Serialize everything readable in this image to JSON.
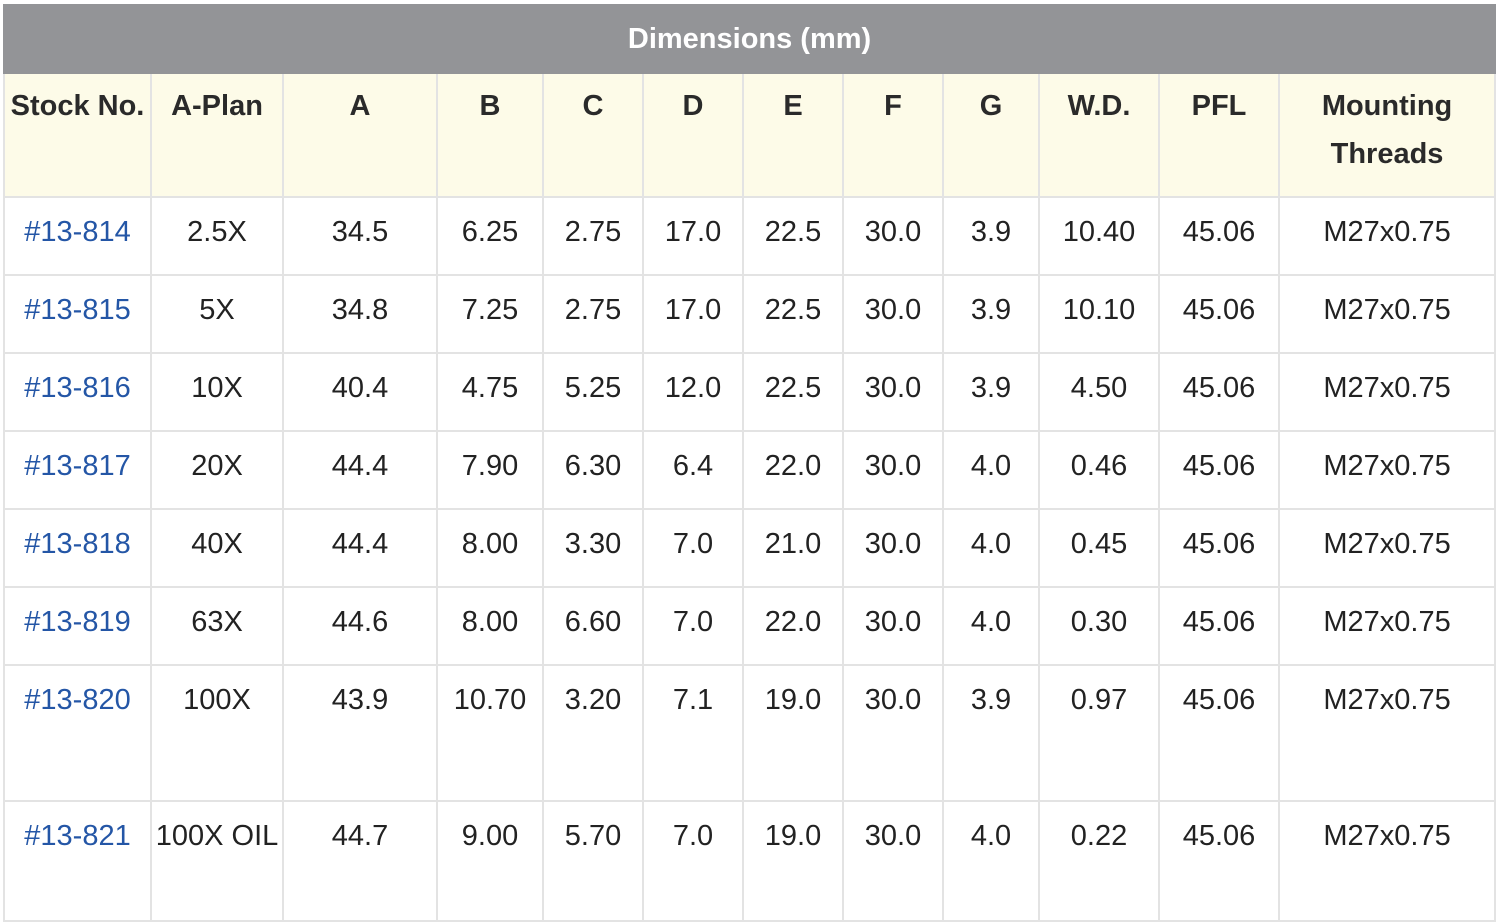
{
  "table": {
    "title": "Dimensions (mm)",
    "columns": [
      "Stock No.",
      "A-Plan",
      "A",
      "B",
      "C",
      "D",
      "E",
      "F",
      "G",
      "W.D.",
      "PFL",
      "Mounting Threads"
    ],
    "rows": [
      [
        "#13-814",
        "2.5X",
        "34.5",
        "6.25",
        "2.75",
        "17.0",
        "22.5",
        "30.0",
        "3.9",
        "10.40",
        "45.06",
        "M27x0.75"
      ],
      [
        "#13-815",
        "5X",
        "34.8",
        "7.25",
        "2.75",
        "17.0",
        "22.5",
        "30.0",
        "3.9",
        "10.10",
        "45.06",
        "M27x0.75"
      ],
      [
        "#13-816",
        "10X",
        "40.4",
        "4.75",
        "5.25",
        "12.0",
        "22.5",
        "30.0",
        "3.9",
        "4.50",
        "45.06",
        "M27x0.75"
      ],
      [
        "#13-817",
        "20X",
        "44.4",
        "7.90",
        "6.30",
        "6.4",
        "22.0",
        "30.0",
        "4.0",
        "0.46",
        "45.06",
        "M27x0.75"
      ],
      [
        "#13-818",
        "40X",
        "44.4",
        "8.00",
        "3.30",
        "7.0",
        "21.0",
        "30.0",
        "4.0",
        "0.45",
        "45.06",
        "M27x0.75"
      ],
      [
        "#13-819",
        "63X",
        "44.6",
        "8.00",
        "6.60",
        "7.0",
        "22.0",
        "30.0",
        "4.0",
        "0.30",
        "45.06",
        "M27x0.75"
      ],
      [
        "#13-820",
        "100X",
        "43.9",
        "10.70",
        "3.20",
        "7.1",
        "19.0",
        "30.0",
        "3.9",
        "0.97",
        "45.06",
        "M27x0.75"
      ],
      [
        "#13-821",
        "100X OIL",
        "44.7",
        "9.00",
        "5.70",
        "7.0",
        "19.0",
        "30.0",
        "4.0",
        "0.22",
        "45.06",
        "M27x0.75"
      ]
    ]
  },
  "colors": {
    "title_bg": "#939497",
    "header_bg": "#fdfbe8",
    "link": "#2456a6",
    "border": "#e3e3e3"
  }
}
